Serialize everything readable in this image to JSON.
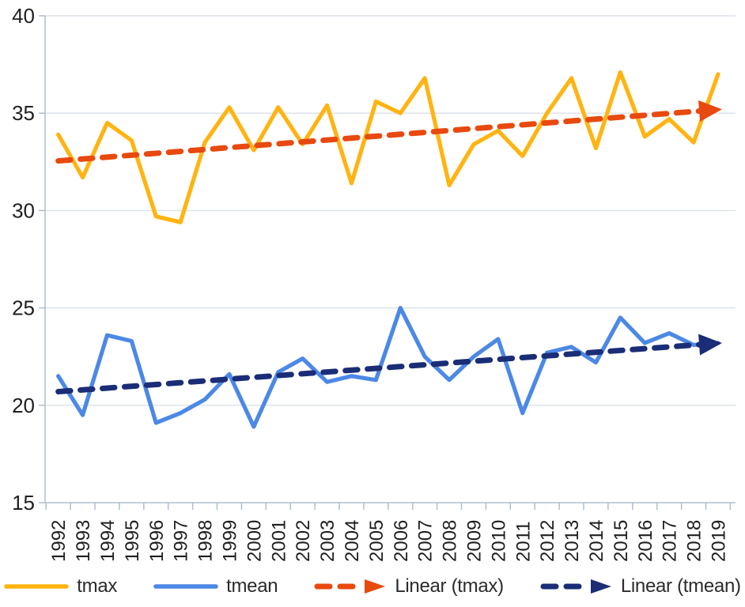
{
  "chart_data": {
    "type": "line",
    "title": "",
    "xlabel": "",
    "ylabel": "",
    "x": [
      1992,
      1993,
      1994,
      1995,
      1996,
      1997,
      1998,
      1999,
      2000,
      2001,
      2002,
      2003,
      2004,
      2005,
      2006,
      2007,
      2008,
      2009,
      2010,
      2011,
      2012,
      2013,
      2014,
      2015,
      2016,
      2017,
      2018,
      2019
    ],
    "series": [
      {
        "name": "tmax",
        "type": "solid-line",
        "color": "#FFB412",
        "values": [
          33.9,
          31.7,
          34.5,
          33.6,
          29.7,
          29.4,
          33.5,
          35.3,
          33.1,
          35.3,
          33.4,
          35.4,
          31.4,
          35.6,
          35.0,
          36.8,
          31.3,
          33.4,
          34.1,
          32.8,
          35.0,
          36.8,
          33.2,
          37.1,
          33.8,
          34.7,
          33.5,
          37.0
        ]
      },
      {
        "name": "tmean",
        "type": "solid-line",
        "color": "#4C88E6",
        "values": [
          21.5,
          19.5,
          23.6,
          23.3,
          19.1,
          19.6,
          20.3,
          21.6,
          18.9,
          21.7,
          22.4,
          21.2,
          21.5,
          21.3,
          25.0,
          22.5,
          21.3,
          22.5,
          23.4,
          19.6,
          22.7,
          23.0,
          22.2,
          24.5,
          23.2,
          23.7,
          23.1,
          23.2
        ]
      },
      {
        "name": "Linear (tmax)",
        "type": "dashed-trend-arrow",
        "color": "#E8490E",
        "trend": {
          "start": 32.55,
          "end": 35.2
        }
      },
      {
        "name": "Linear (tmean)",
        "type": "dashed-trend-arrow",
        "color": "#1A2D76",
        "trend": {
          "start": 20.7,
          "end": 23.2
        }
      }
    ],
    "ylim": [
      15,
      40
    ],
    "yticks": [
      15,
      20,
      25,
      30,
      35,
      40
    ],
    "grid": "horizontal",
    "legend_position": "bottom"
  },
  "style": {
    "grid_color": "#DAE1E8",
    "axis_color": "#AFBFCC",
    "tick_color": "#AFBFCC",
    "tick_label_color": "#1f1f1f",
    "legend_text_color": "#2b2b2b",
    "background": "#ffffff"
  }
}
